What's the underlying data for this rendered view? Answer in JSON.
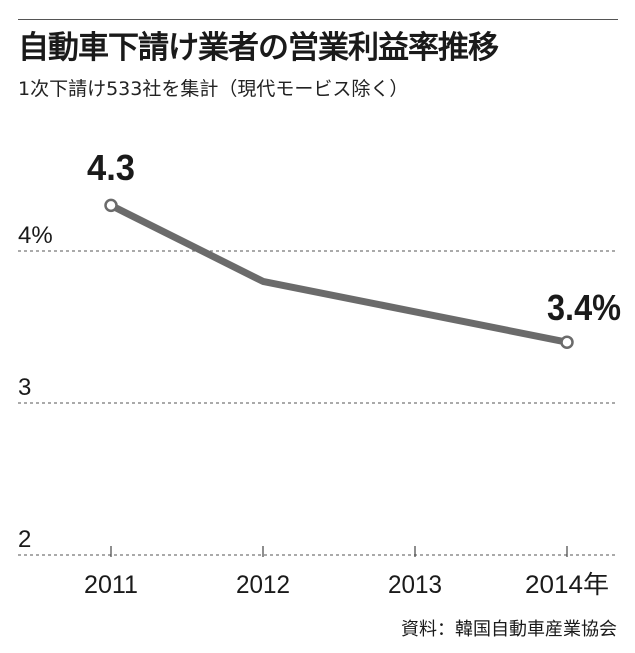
{
  "header": {
    "title": "自動車下請け業者の営業利益率推移",
    "subtitle": "1次下請け533社を集計（現代モービス除く）"
  },
  "footer": {
    "source": "資料：韓国自動車産業協会"
  },
  "colors": {
    "line": "#6b6b6b",
    "text": "#1a1a1a",
    "grid": "#777777"
  },
  "chart_data": {
    "type": "line",
    "categories": [
      "2011",
      "2012",
      "2013",
      "2014年"
    ],
    "series": [
      {
        "values": [
          4.3,
          3.8,
          3.6,
          3.4
        ]
      }
    ],
    "y_ticks": [
      "4%",
      "3",
      "2"
    ],
    "y_tick_values": [
      4,
      3,
      2
    ],
    "ylim": [
      2,
      4.6
    ],
    "data_labels": [
      "4.3",
      "",
      "",
      "3.4%"
    ],
    "grid": "dashed horizontal",
    "legend": "none"
  }
}
